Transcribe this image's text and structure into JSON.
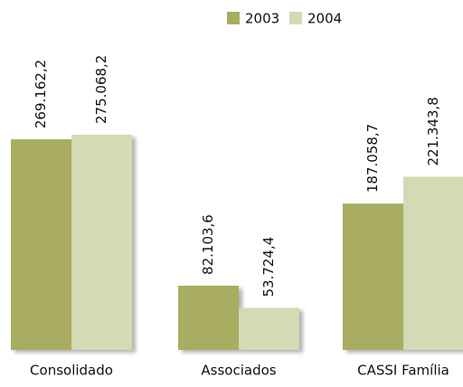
{
  "chart_data": {
    "type": "bar",
    "categories": [
      "Consolidado",
      "Associados",
      "CASSI Família"
    ],
    "series": [
      {
        "name": "2003",
        "color": "#a8ad62",
        "values": [
          269162.2,
          82103.6,
          187058.7
        ],
        "value_labels": [
          "269.162,2",
          "82.103,6",
          "187.058,7"
        ]
      },
      {
        "name": "2004",
        "color": "#d4dab4",
        "values": [
          275068.2,
          53724.4,
          221343.8
        ],
        "value_labels": [
          "275.068,2",
          "53.724,4",
          "221.343,8"
        ]
      }
    ],
    "legend": "top"
  }
}
